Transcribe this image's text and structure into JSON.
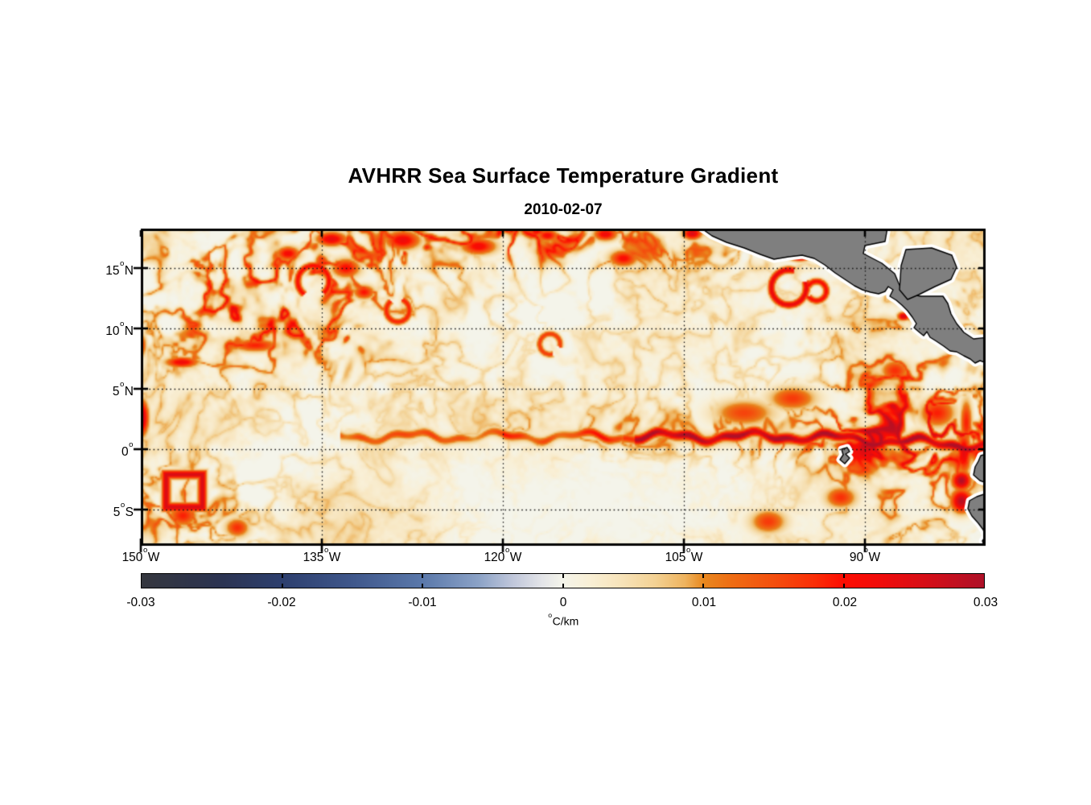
{
  "chart_data": {
    "type": "heatmap",
    "title": "AVHRR Sea Surface Temperature Gradient",
    "subtitle_date": "2010-02-07",
    "x_axis": {
      "ticks": [
        "150°W",
        "135°W",
        "120°W",
        "105°W",
        "90°W"
      ],
      "tick_values_lon_west": [
        150,
        135,
        120,
        105,
        90
      ],
      "range_lon_west": [
        150,
        80
      ]
    },
    "y_axis": {
      "ticks": [
        "15°N",
        "10°N",
        "5°N",
        "0°",
        "5°S"
      ],
      "tick_values_lat": [
        15,
        10,
        5,
        0,
        -5
      ],
      "range_lat": [
        -7.9,
        18.3
      ]
    },
    "grid": "dotted-black",
    "land_color": "#7f7f7f",
    "coastline_color": "#000000",
    "coast_buffer_color": "#ffffff",
    "colorbar": {
      "orientation": "horizontal",
      "range": [
        -0.03,
        0.03
      ],
      "tick_labels": [
        "-0.03",
        "-0.02",
        "-0.01",
        "0",
        "0.01",
        "0.02",
        "0.03"
      ],
      "unit": "°C/km",
      "stops": [
        [
          0.0,
          "#35373e"
        ],
        [
          0.09,
          "#2b3350"
        ],
        [
          0.167,
          "#2d3f6e"
        ],
        [
          0.25,
          "#3f578b"
        ],
        [
          0.333,
          "#5a78aa"
        ],
        [
          0.4,
          "#8ba2c6"
        ],
        [
          0.44,
          "#bfc6da"
        ],
        [
          0.475,
          "#e3e4e8"
        ],
        [
          0.5,
          "#f4f4ea"
        ],
        [
          0.53,
          "#f9f0d7"
        ],
        [
          0.57,
          "#f7e3b9"
        ],
        [
          0.61,
          "#f3d193"
        ],
        [
          0.645,
          "#eeb35e"
        ],
        [
          0.667,
          "#e8881f"
        ],
        [
          0.7,
          "#ee6d14"
        ],
        [
          0.75,
          "#f44f0e"
        ],
        [
          0.8,
          "#fa2d07"
        ],
        [
          0.833,
          "#fd0d02"
        ],
        [
          0.88,
          "#ef0c0b"
        ],
        [
          0.93,
          "#d60e17"
        ],
        [
          1.0,
          "#ae1128"
        ]
      ]
    },
    "features": [
      {
        "type": "front",
        "lat_mean": 1.05,
        "west_limit_lon_w": 133.5,
        "v_west": 0.012,
        "v_mid": 0.015,
        "v_east": 0.0245
      },
      {
        "type": "gauss",
        "lon_w": 149.9,
        "lat": 2.6,
        "sx": 0.55,
        "sy": 1.5,
        "v": 0.028
      },
      {
        "type": "gauss",
        "lon_w": 149.9,
        "lat": 8.6,
        "sx": 0.4,
        "sy": 1.0,
        "v": 0.016
      },
      {
        "type": "gauss",
        "lon_w": 146.6,
        "lat": 7.2,
        "sx": 1.4,
        "sy": 0.45,
        "v": 0.023
      },
      {
        "type": "gauss",
        "lon_w": 86.8,
        "lat": 11.0,
        "sx": 0.5,
        "sy": 0.35,
        "v": 0.027
      },
      {
        "type": "gauss",
        "lon_w": 104.3,
        "lat": 17.85,
        "sx": 0.8,
        "sy": 0.5,
        "v": 0.026
      },
      {
        "type": "gauss",
        "lon_w": 116.3,
        "lat": 17.7,
        "sx": 0.9,
        "sy": 0.5,
        "v": 0.022
      },
      {
        "type": "gauss",
        "lon_w": 111.5,
        "lat": 17.8,
        "sx": 1.0,
        "sy": 0.55,
        "v": 0.023
      },
      {
        "type": "gauss",
        "lon_w": 128.3,
        "lat": 17.3,
        "sx": 1.5,
        "sy": 0.8,
        "v": 0.023
      },
      {
        "type": "gauss",
        "lon_w": 134.2,
        "lat": 17.4,
        "sx": 1.3,
        "sy": 0.6,
        "v": 0.024
      },
      {
        "type": "gauss",
        "lon_w": 95.4,
        "lat": 15.85,
        "sx": 0.8,
        "sy": 0.3,
        "v": 0.026
      },
      {
        "type": "gauss",
        "lon_w": 82.0,
        "lat": -2.6,
        "sx": 0.8,
        "sy": 0.8,
        "v": 0.03
      },
      {
        "type": "gauss",
        "lon_w": 82.0,
        "lat": -4.3,
        "sx": 0.9,
        "sy": 1.0,
        "v": 0.029
      },
      {
        "type": "gauss",
        "lon_w": 81.8,
        "lat": -0.3,
        "sx": 0.6,
        "sy": 1.8,
        "v": 0.024
      },
      {
        "type": "gauss",
        "lon_w": 81.6,
        "lat": 2.2,
        "sx": 0.5,
        "sy": 2.0,
        "v": 0.019
      },
      {
        "type": "gauss",
        "lon_w": 91.5,
        "lat": 0.3,
        "sx": 1.2,
        "sy": 0.35,
        "v": 0.021
      },
      {
        "type": "gauss",
        "lon_w": 140.5,
        "lat": 8.6,
        "sx": 2.0,
        "sy": 0.55,
        "v": 0.019
      },
      {
        "type": "gauss",
        "lon_w": 133.0,
        "lat": 15.0,
        "sx": 1.2,
        "sy": 0.8,
        "v": 0.021
      },
      {
        "type": "gauss",
        "lon_w": 137.8,
        "lat": 16.2,
        "sx": 1.0,
        "sy": 0.6,
        "v": 0.022
      },
      {
        "type": "gauss",
        "lon_w": 131.5,
        "lat": 13.0,
        "sx": 0.9,
        "sy": 0.6,
        "v": 0.02
      },
      {
        "type": "gauss",
        "lon_w": 87.5,
        "lat": 6.5,
        "sx": 1.2,
        "sy": 0.9,
        "v": 0.018
      },
      {
        "type": "gauss",
        "lon_w": 84.0,
        "lat": 3.0,
        "sx": 1.5,
        "sy": 1.2,
        "v": 0.019
      },
      {
        "type": "gauss",
        "lon_w": 92.0,
        "lat": -4.0,
        "sx": 1.3,
        "sy": 0.9,
        "v": 0.018
      },
      {
        "type": "gauss",
        "lon_w": 98.0,
        "lat": -6.0,
        "sx": 1.5,
        "sy": 1.0,
        "v": 0.017
      },
      {
        "type": "gauss",
        "lon_w": 146.5,
        "lat": -5.5,
        "sx": 1.2,
        "sy": 0.9,
        "v": 0.019
      },
      {
        "type": "gauss",
        "lon_w": 142.0,
        "lat": -6.5,
        "sx": 1.0,
        "sy": 0.8,
        "v": 0.018
      },
      {
        "type": "gauss",
        "lon_w": 110.0,
        "lat": 15.8,
        "sx": 1.2,
        "sy": 0.7,
        "v": 0.021
      },
      {
        "type": "gauss",
        "lon_w": 122.0,
        "lat": 16.8,
        "sx": 1.5,
        "sy": 0.7,
        "v": 0.022
      },
      {
        "type": "gauss",
        "lon_w": 100.0,
        "lat": 3.0,
        "sx": 2.5,
        "sy": 1.1,
        "v": 0.016
      },
      {
        "type": "gauss",
        "lon_w": 96.0,
        "lat": 4.2,
        "sx": 2.0,
        "sy": 1.0,
        "v": 0.017
      },
      {
        "type": "ring",
        "lon_w": 96.3,
        "lat": 13.4,
        "r": 1.45,
        "w": 0.3,
        "v": 0.024,
        "gap": [
          0.35,
          1.25
        ]
      },
      {
        "type": "ring",
        "lon_w": 94.0,
        "lat": 13.1,
        "r": 0.8,
        "w": 0.28,
        "v": 0.021,
        "gap": [
          2.6,
          3.7
        ]
      },
      {
        "type": "ring",
        "lon_w": 135.7,
        "lat": 13.9,
        "r": 1.3,
        "w": 0.3,
        "v": 0.021,
        "gap": [
          4.1,
          5.4
        ]
      },
      {
        "type": "ring",
        "lon_w": 128.7,
        "lat": 11.5,
        "r": 0.95,
        "w": 0.28,
        "v": 0.019,
        "gap": [
          1.2,
          2.2
        ]
      },
      {
        "type": "ring",
        "lon_w": 116.1,
        "lat": 8.7,
        "r": 0.85,
        "w": 0.26,
        "v": 0.017,
        "gap": [
          5.0,
          6.0
        ]
      },
      {
        "type": "box",
        "lon_w": 146.4,
        "lat": -3.45,
        "hw": 1.5,
        "hh": 1.35,
        "v": 0.026
      }
    ]
  }
}
